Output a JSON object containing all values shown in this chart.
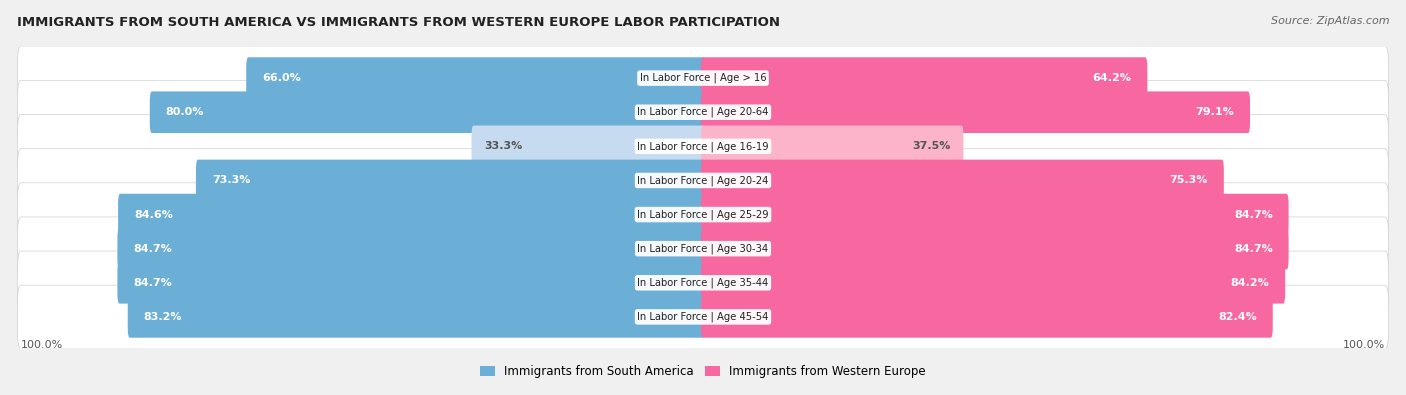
{
  "title": "IMMIGRANTS FROM SOUTH AMERICA VS IMMIGRANTS FROM WESTERN EUROPE LABOR PARTICIPATION",
  "source": "Source: ZipAtlas.com",
  "categories": [
    "In Labor Force | Age > 16",
    "In Labor Force | Age 20-64",
    "In Labor Force | Age 16-19",
    "In Labor Force | Age 20-24",
    "In Labor Force | Age 25-29",
    "In Labor Force | Age 30-34",
    "In Labor Force | Age 35-44",
    "In Labor Force | Age 45-54"
  ],
  "south_america": [
    66.0,
    80.0,
    33.3,
    73.3,
    84.6,
    84.7,
    84.7,
    83.2
  ],
  "western_europe": [
    64.2,
    79.1,
    37.5,
    75.3,
    84.7,
    84.7,
    84.2,
    82.4
  ],
  "sa_color": "#6baed6",
  "we_color": "#f768a1",
  "sa_color_light": "#c6dbef",
  "we_color_light": "#fbb4c9",
  "label_legend_sa": "Immigrants from South America",
  "label_legend_we": "Immigrants from Western Europe",
  "bg_color": "#f0f0f0",
  "row_bg_odd": "#f8f8f8",
  "row_bg_even": "#ebebeb"
}
